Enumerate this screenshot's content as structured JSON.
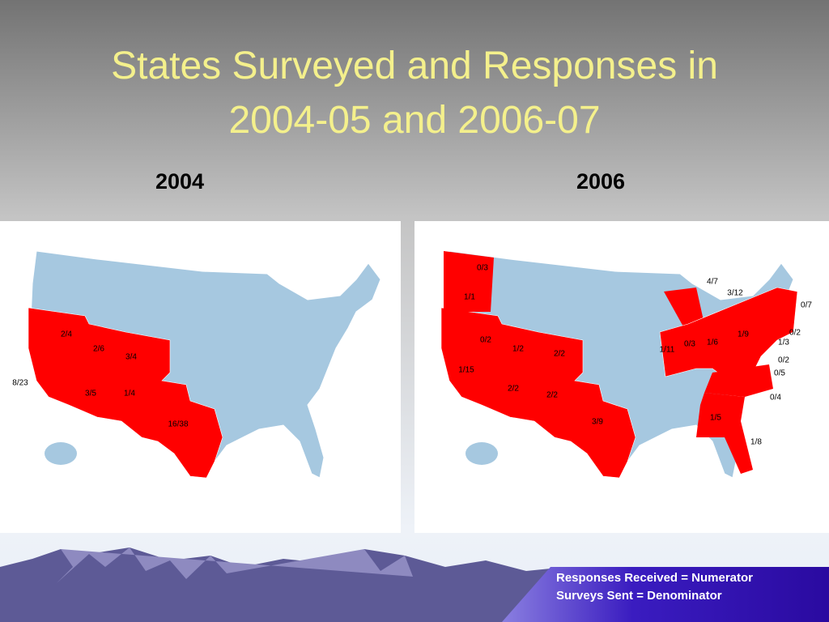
{
  "header": {
    "title_lines": [
      "States Surveyed and Responses in",
      "2004-05 and 2006-07"
    ]
  },
  "maps": [
    {
      "year": "2004",
      "labels": [
        "2/4",
        "2/6",
        "3/4",
        "3/5",
        "1/4",
        "16/38",
        "8/23"
      ]
    },
    {
      "year": "2006",
      "labels": [
        "0/3",
        "1/1",
        "0/2",
        "1/2",
        "2/2",
        "1/15",
        "2/2",
        "2/2",
        "3/9",
        "4/7",
        "3/12",
        "0/7",
        "1/9",
        "1/6",
        "0/3",
        "1/11",
        "0/2",
        "1/3",
        "0/2",
        "0/5",
        "0/4",
        "1/5",
        "1/8"
      ]
    }
  ],
  "legend": [
    "Responses Received = Numerator",
    "Surveys Sent = Denominator"
  ]
}
